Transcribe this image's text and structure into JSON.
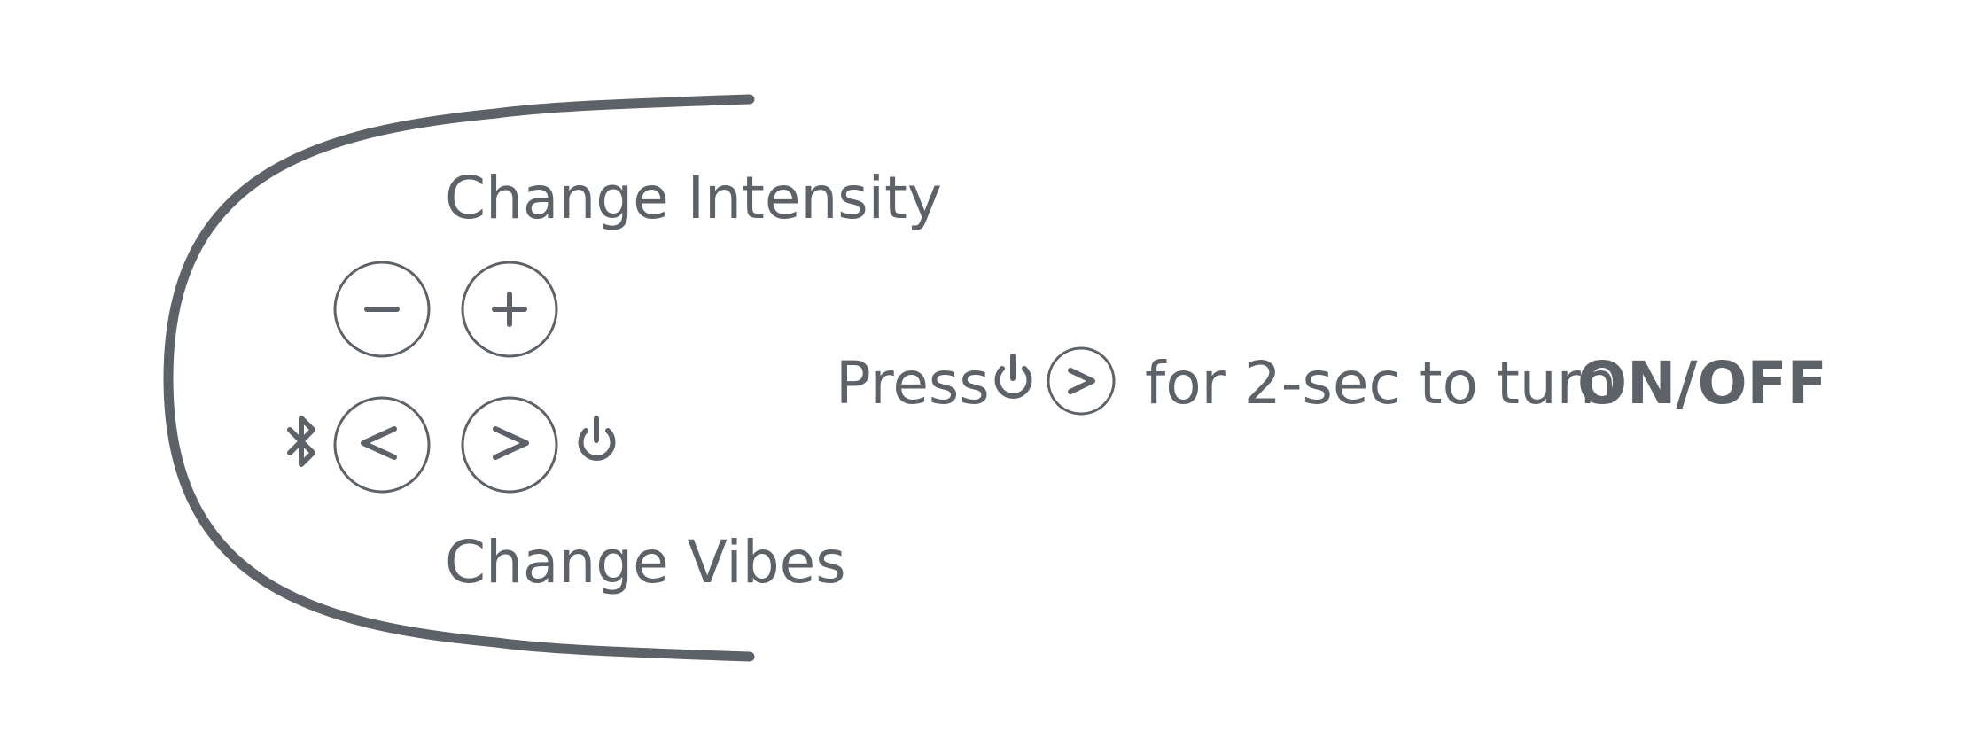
{
  "colors": {
    "ink": "#5d6168",
    "background": "#ffffff"
  },
  "labels": {
    "intensity": "Change Intensity",
    "vibes": "Change Vibes"
  },
  "instruction": {
    "press": "Press",
    "duration": "for 2-sec to turn",
    "state": "ON/OFF"
  },
  "icons": {
    "minus": "minus-icon",
    "plus": "plus-icon",
    "prev": "chevron-left-icon",
    "next": "chevron-right-icon",
    "bluetooth": "bluetooth-icon",
    "power": "power-icon"
  }
}
